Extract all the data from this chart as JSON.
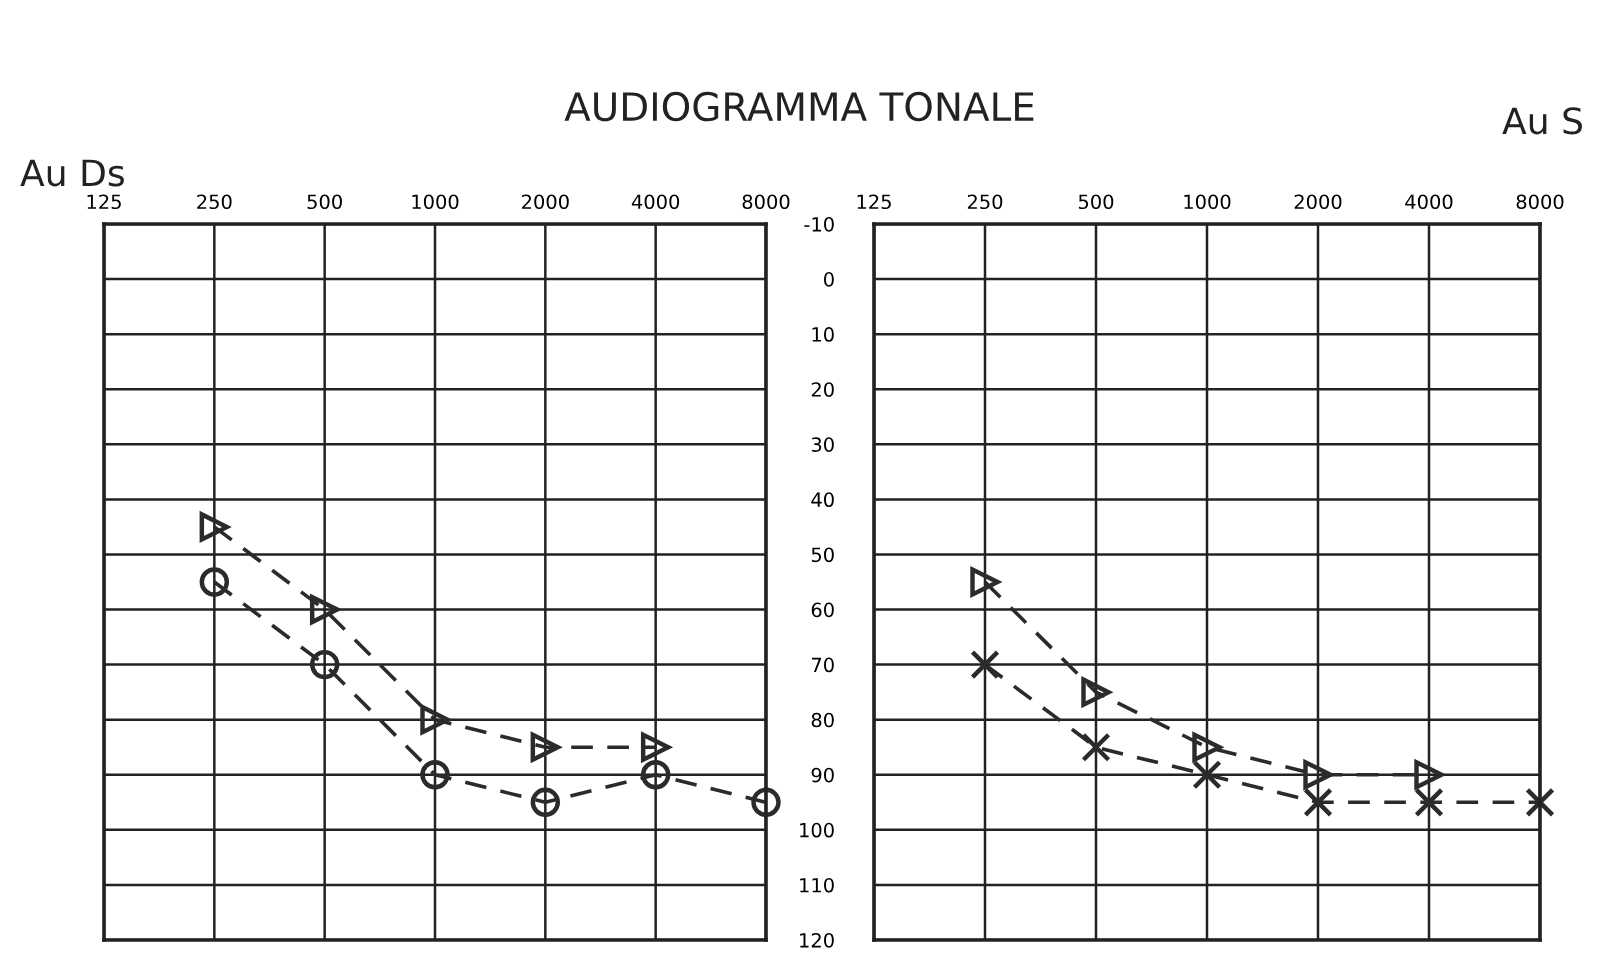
{
  "chart_data": [
    {
      "type": "line",
      "title": "AUDIOGRAMMA TONALE",
      "subtitle": "Au Ds",
      "log": "x",
      "xlim": [
        125,
        8000
      ],
      "xticks": [
        125,
        250,
        500,
        1000,
        2000,
        4000,
        8000
      ],
      "ylim": [
        120,
        -10
      ],
      "yticks": [
        -10,
        0,
        10,
        20,
        30,
        40,
        50,
        60,
        70,
        80,
        90,
        100,
        110,
        120
      ],
      "tick_labels": "x",
      "grid": true,
      "series": [
        {
          "color": "#2b2b2b",
          "x": [
            250,
            500,
            1000,
            2000,
            4000,
            8000
          ],
          "values": [
            55,
            70,
            90,
            95,
            90,
            95
          ],
          "marker": "circle",
          "line_style": "dashed"
        },
        {
          "color": "#2b2b2b",
          "x": [
            250,
            500,
            1000,
            2000,
            4000
          ],
          "values": [
            45,
            60,
            80,
            85,
            85
          ],
          "marker": "triangle",
          "line_style": "dashed"
        }
      ]
    },
    {
      "type": "line",
      "subtitle": "Au S",
      "log": "x",
      "xlim": [
        125,
        8000
      ],
      "xticks": [
        125,
        250,
        500,
        1000,
        2000,
        4000,
        8000
      ],
      "ylim": [
        120,
        -10
      ],
      "yticks": [
        -10,
        0,
        10,
        20,
        30,
        40,
        50,
        60,
        70,
        80,
        90,
        100,
        110,
        120
      ],
      "grid": true,
      "series": [
        {
          "color": "#2b2b2b",
          "x": [
            250,
            500,
            1000,
            2000,
            4000,
            8000
          ],
          "values": [
            70,
            85,
            90,
            95,
            95,
            95
          ],
          "marker": "cross",
          "line_style": "dashed"
        },
        {
          "color": "#2b2b2b",
          "x": [
            250,
            500,
            1000,
            2000,
            4000
          ],
          "values": [
            55,
            75,
            85,
            90,
            90
          ],
          "marker": "triangle",
          "line_style": "dashed"
        }
      ]
    }
  ]
}
